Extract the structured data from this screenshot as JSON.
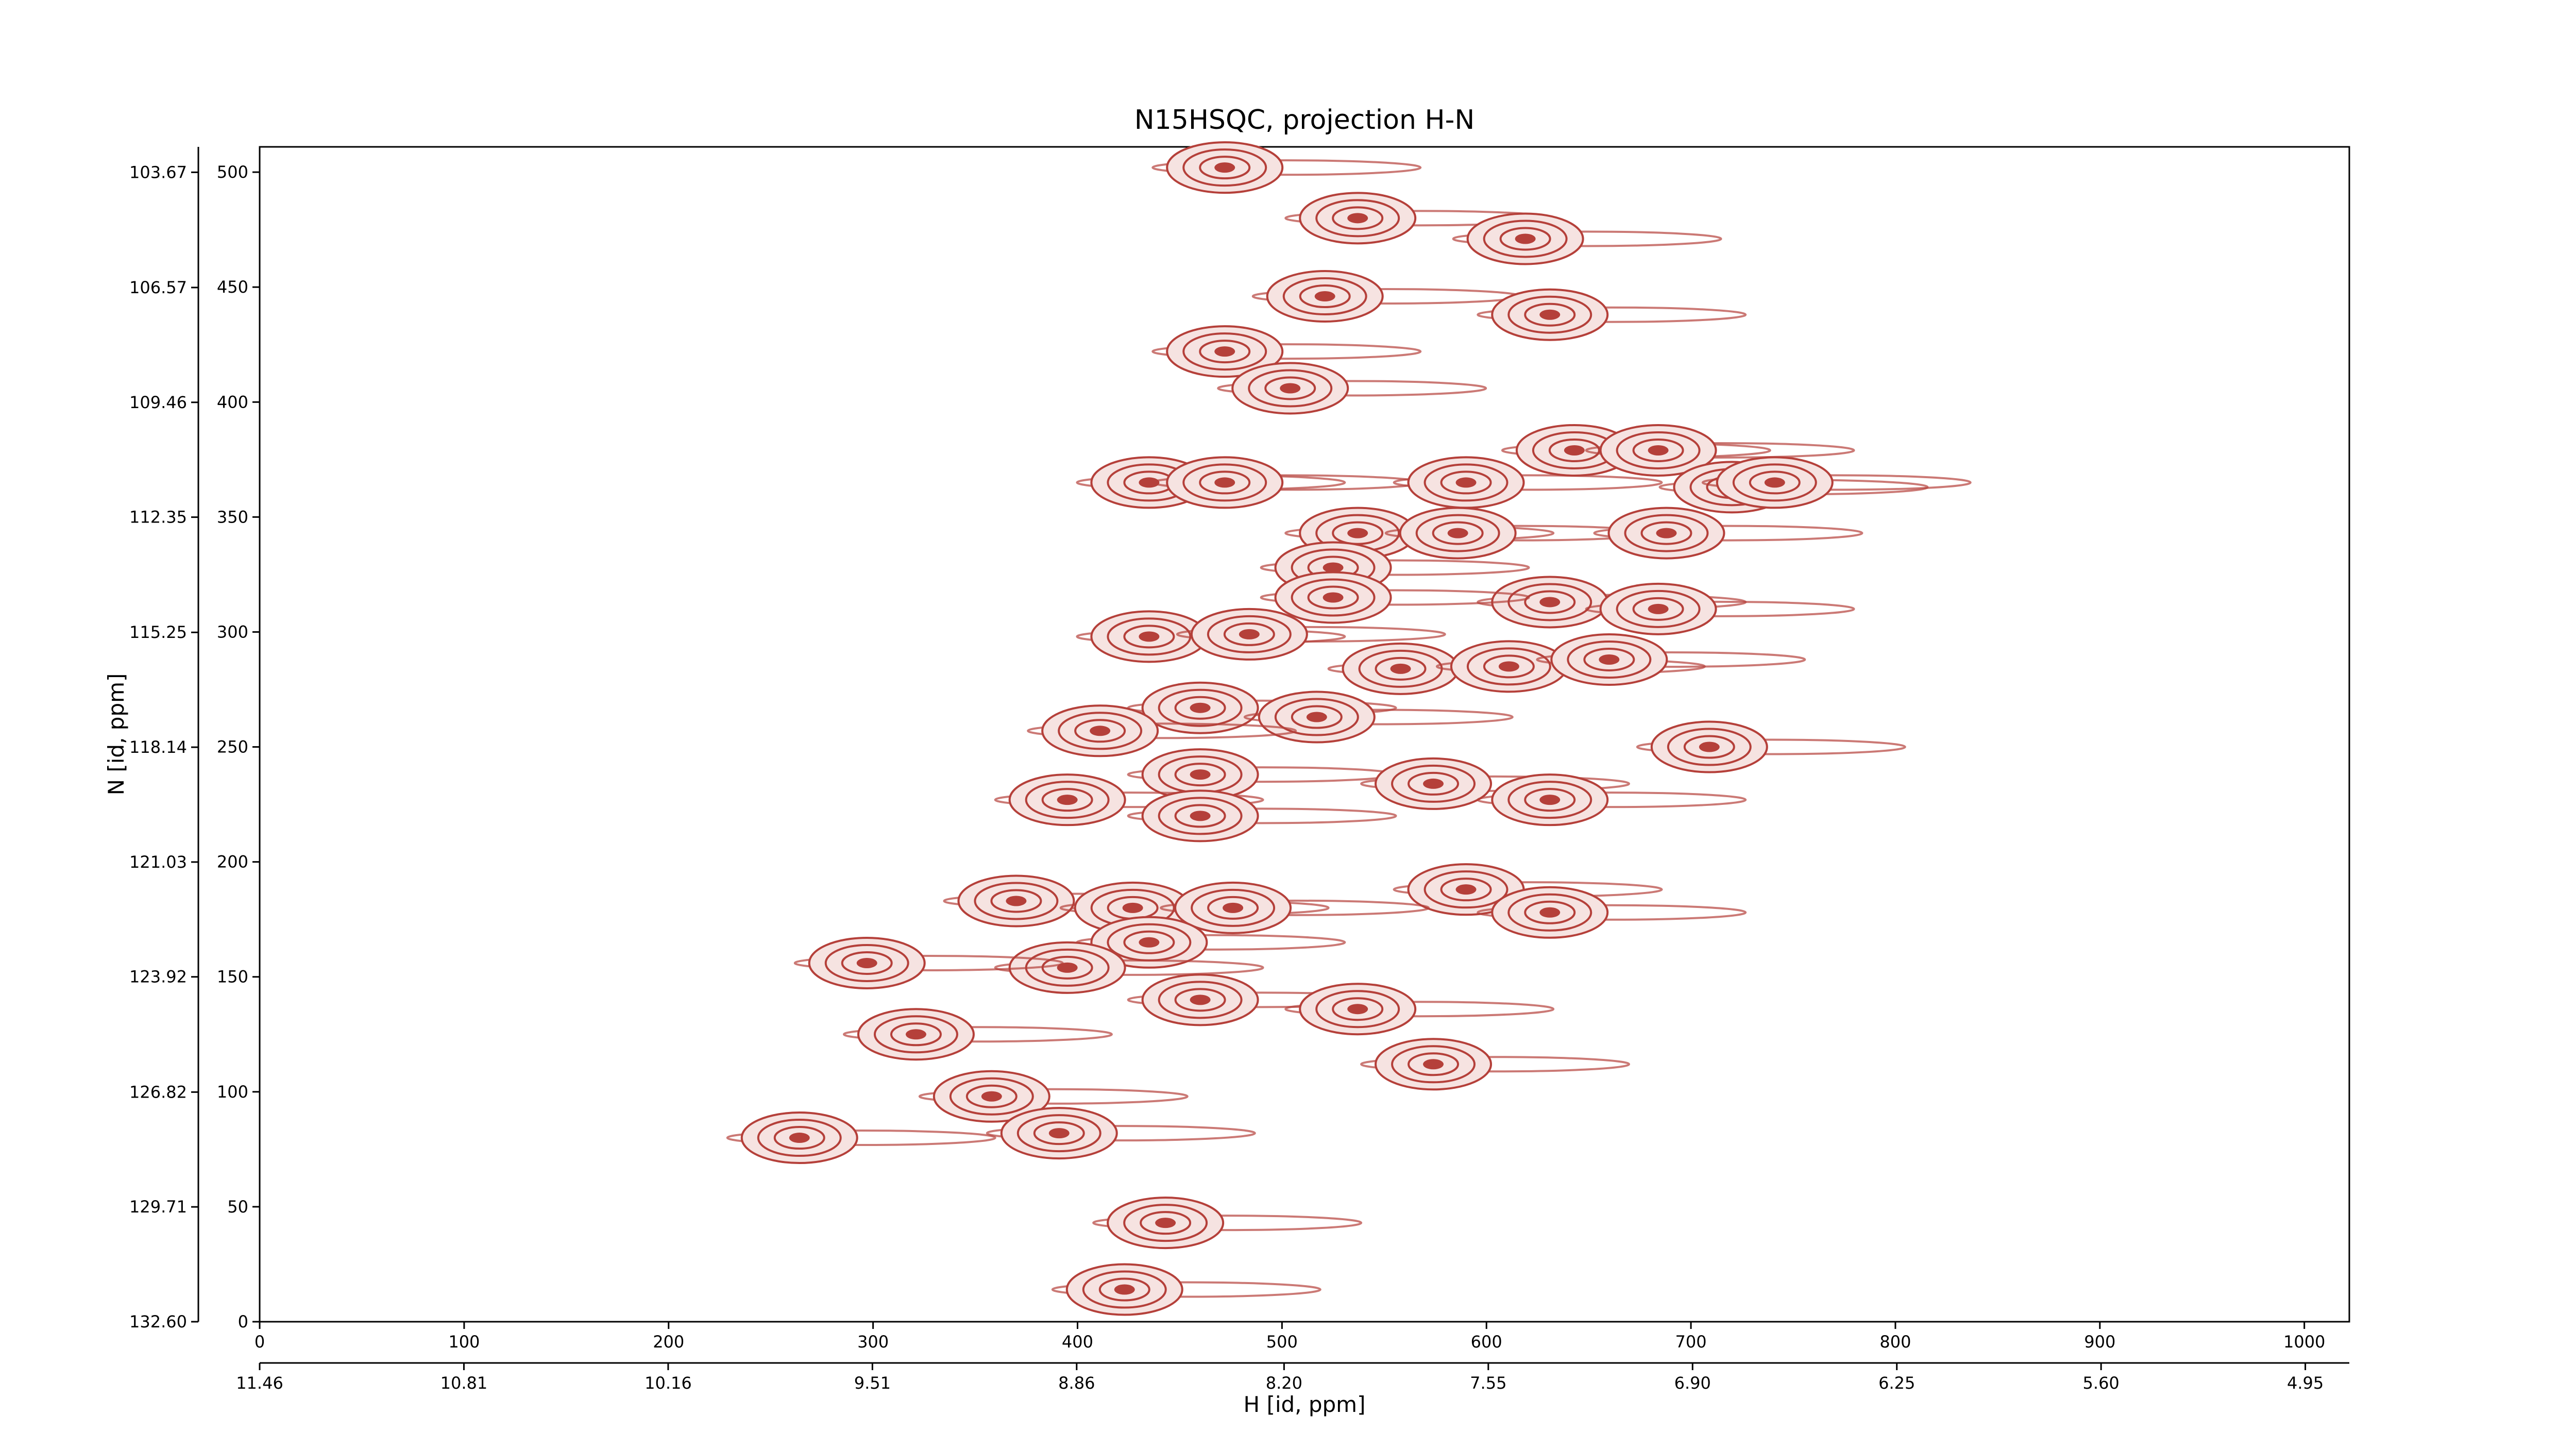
{
  "chart_data": {
    "type": "contour",
    "title": "N15HSQC, projection H-N",
    "xlabel": "H [id, ppm]",
    "ylabel": "N [id, ppm]",
    "xlim": [
      0,
      1022
    ],
    "xticks": [
      0,
      100,
      200,
      300,
      400,
      500,
      600,
      700,
      800,
      900,
      1000
    ],
    "ylim": [
      0,
      511
    ],
    "yticks": [
      0,
      50,
      100,
      150,
      200,
      250,
      300,
      350,
      400,
      450,
      500
    ],
    "x2lim": [
      11.46,
      4.81
    ],
    "x2ticks": [
      11.46,
      10.81,
      10.16,
      9.51,
      8.86,
      {
        "value": 8.2,
        "label": "8.20"
      },
      7.55,
      {
        "value": 6.9,
        "label": "6.90"
      },
      6.25,
      {
        "value": 5.6,
        "label": "5.60"
      },
      4.95
    ],
    "y2lim": [
      132.6,
      103.03
    ],
    "y2ticks": [
      {
        "value": 132.6,
        "label": "132.60"
      },
      129.71,
      126.82,
      123.92,
      121.03,
      118.14,
      115.25,
      112.35,
      109.46,
      106.57,
      103.67
    ],
    "color": "#b5403a",
    "peaks": {
      "x": [
        472,
        537,
        619,
        521,
        631,
        472,
        504,
        643,
        684,
        435,
        472,
        590,
        720,
        741,
        537,
        586,
        688,
        525,
        631,
        525,
        684,
        435,
        484,
        558,
        611,
        660,
        460,
        517,
        411,
        709,
        460,
        574,
        395,
        460,
        631,
        590,
        631,
        370,
        427,
        476,
        435,
        395,
        297,
        460,
        537,
        321,
        574,
        358,
        391,
        264,
        443,
        423
      ],
      "y": [
        502,
        480,
        471,
        446,
        438,
        422,
        406,
        379,
        379,
        365,
        365,
        365,
        363,
        365,
        343,
        343,
        343,
        328,
        313,
        315,
        310,
        298,
        299,
        284,
        285,
        288,
        267,
        263,
        257,
        250,
        238,
        234,
        227,
        220,
        227,
        188,
        178,
        183,
        180,
        180,
        165,
        154,
        156,
        140,
        136,
        125,
        112,
        98,
        82,
        80,
        43,
        14
      ]
    }
  }
}
